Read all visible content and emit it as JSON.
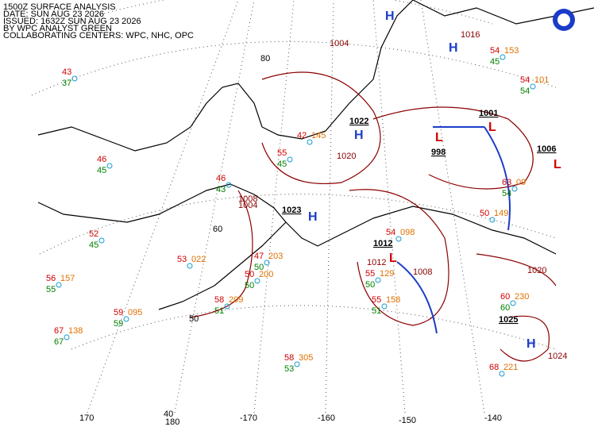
{
  "header": {
    "lines": [
      "1500Z SURFACE ANALYSIS",
      "DATE: SUN AUG 23 2026",
      "ISSUED: 1632Z SUN AUG 23 2026",
      "BY WPC ANALYST GREEN",
      "COLLABORATING CENTERS: WPC, NHC, OPC"
    ]
  },
  "grid_labels": [
    "80",
    "60",
    "50",
    "40",
    "170",
    "180",
    "-170",
    "-160",
    "-150",
    "-140"
  ],
  "centers": [
    {
      "symbol": "H",
      "pressure": "1022"
    },
    {
      "symbol": "H",
      "pressure": "1023"
    },
    {
      "symbol": "H",
      "pressure": "1025"
    },
    {
      "symbol": "H"
    },
    {
      "symbol": "H"
    },
    {
      "symbol": "L",
      "pressure": "1001"
    },
    {
      "symbol": "L",
      "pressure": "1012"
    },
    {
      "symbol": "L",
      "pressure": "998"
    },
    {
      "symbol": "L",
      "pressure": "1006"
    }
  ],
  "isobar_labels": [
    "1004",
    "1008",
    "1016",
    "1024",
    "1020",
    "1012",
    "1008",
    "1004",
    "1020"
  ],
  "stations": [
    {
      "temp": "43",
      "dew": "37"
    },
    {
      "temp": "46",
      "dew": "45"
    },
    {
      "temp": "52",
      "dew": "45"
    },
    {
      "temp": "56",
      "dew": "55",
      "pressure": "157"
    },
    {
      "temp": "59",
      "dew": "59",
      "pressure": "095"
    },
    {
      "temp": "67",
      "dew": "67",
      "pressure": "138"
    },
    {
      "temp": "53",
      "pressure": "022"
    },
    {
      "temp": "58",
      "dew": "51",
      "pressure": "209"
    },
    {
      "temp": "42",
      "pressure": "145"
    },
    {
      "temp": "55",
      "dew": "45"
    },
    {
      "temp": "46",
      "dew": "43"
    },
    {
      "temp": "47",
      "dew": "50",
      "pressure": "203"
    },
    {
      "temp": "50",
      "dew": "50",
      "pressure": "200"
    },
    {
      "temp": "58",
      "dew": "53",
      "pressure": "305"
    },
    {
      "temp": "60",
      "dew": "60",
      "pressure": "230"
    },
    {
      "temp": "68",
      "pressure": "221"
    },
    {
      "temp": "54",
      "dew": "45",
      "pressure": "153"
    },
    {
      "temp": "54",
      "dew": "54",
      "pressure": "101"
    },
    {
      "temp": "50",
      "pressure": "149"
    },
    {
      "temp": "55",
      "dew": "51",
      "pressure": "158"
    },
    {
      "temp": "55",
      "dew": "50",
      "pressure": "129"
    },
    {
      "temp": "54",
      "pressure": "098"
    },
    {
      "temp": "63",
      "dew": "54",
      "pressure": "09"
    }
  ]
}
